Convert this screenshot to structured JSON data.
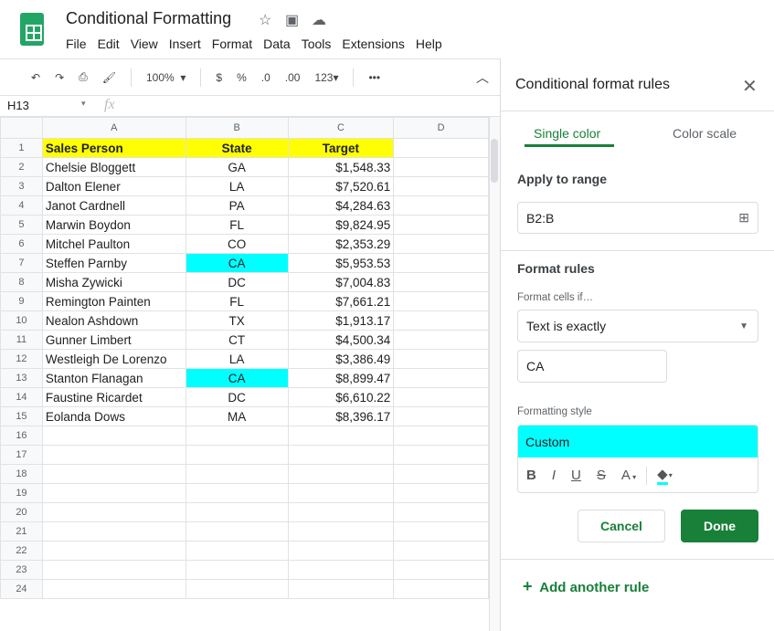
{
  "app": {
    "title": "Conditional Formatting",
    "menu": [
      "File",
      "Edit",
      "View",
      "Insert",
      "Format",
      "Data",
      "Tools",
      "Extensions",
      "Help"
    ]
  },
  "toolbar": {
    "zoom": "100%",
    "currency": "$",
    "percent": "%",
    "dec_decrease": ".0",
    "dec_increase": ".00",
    "more_formats": "123▾",
    "more": "•••"
  },
  "formula_bar": {
    "cell_ref": "H13",
    "fx": "fx",
    "value": ""
  },
  "sheet": {
    "columns": [
      "A",
      "B",
      "C",
      "D"
    ],
    "header": [
      "Sales Person",
      "State",
      "Target"
    ],
    "header_color": "#ffff00",
    "highlight_color": "#00ffff",
    "rows": [
      [
        "Chelsie Bloggett",
        "GA",
        "$1,548.33"
      ],
      [
        "Dalton Elener",
        "LA",
        "$7,520.61"
      ],
      [
        "Janot Cardnell",
        "PA",
        "$4,284.63"
      ],
      [
        "Marwin Boydon",
        "FL",
        "$9,824.95"
      ],
      [
        "Mitchel Paulton",
        "CO",
        "$2,353.29"
      ],
      [
        "Steffen Parnby",
        "CA",
        "$5,953.53"
      ],
      [
        "Misha Zywicki",
        "DC",
        "$7,004.83"
      ],
      [
        "Remington Painten",
        "FL",
        "$7,661.21"
      ],
      [
        "Nealon Ashdown",
        "TX",
        "$1,913.17"
      ],
      [
        "Gunner Limbert",
        "CT",
        "$4,500.34"
      ],
      [
        "Westleigh De Lorenzo",
        "LA",
        "$3,386.49"
      ],
      [
        "Stanton Flanagan",
        "CA",
        "$8,899.47"
      ],
      [
        "Faustine Ricardet",
        "DC",
        "$6,610.22"
      ],
      [
        "Eolanda Dows",
        "MA",
        "$8,396.17"
      ]
    ],
    "total_rows": 24
  },
  "panel": {
    "title": "Conditional format rules",
    "tabs": [
      "Single color",
      "Color scale"
    ],
    "apply_label": "Apply to range",
    "range": "B2:B",
    "rules_label": "Format rules",
    "cells_if_label": "Format cells if…",
    "condition": "Text is exactly",
    "value": "CA",
    "style_label": "Formatting style",
    "style_name": "Custom",
    "style_buttons": [
      "B",
      "I",
      "U",
      "S",
      "A"
    ],
    "cancel": "Cancel",
    "done": "Done",
    "add_rule": "Add another rule",
    "accent": "#188038"
  }
}
